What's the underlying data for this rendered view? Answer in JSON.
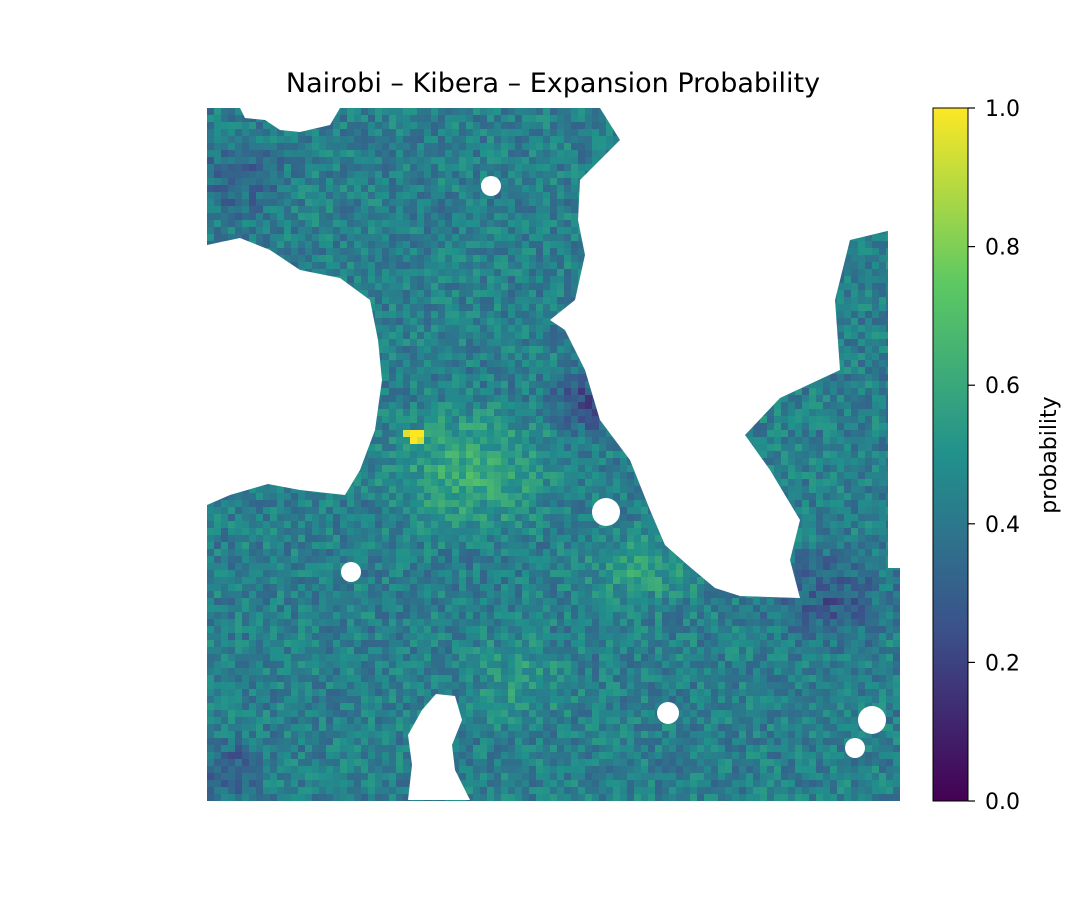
{
  "chart_data": {
    "type": "heatmap",
    "title": "Nairobi – Kibera – Expansion Probability",
    "colormap": "viridis",
    "colormap_stops": [
      "#440154",
      "#3b528b",
      "#21918c",
      "#5ec962",
      "#fde725"
    ],
    "axes_visible": false,
    "colorbar": {
      "label": "probability",
      "range": [
        0.0,
        1.0
      ],
      "placement": "right",
      "ticks": [
        {
          "value": 0.0,
          "label": "0.0"
        },
        {
          "value": 0.2,
          "label": "0.2"
        },
        {
          "value": 0.4,
          "label": "0.4"
        },
        {
          "value": 0.6,
          "label": "0.6"
        },
        {
          "value": 0.8,
          "label": "0.8"
        },
        {
          "value": 1.0,
          "label": "1.0"
        }
      ]
    },
    "nodata_color": "#ffffff"
  }
}
